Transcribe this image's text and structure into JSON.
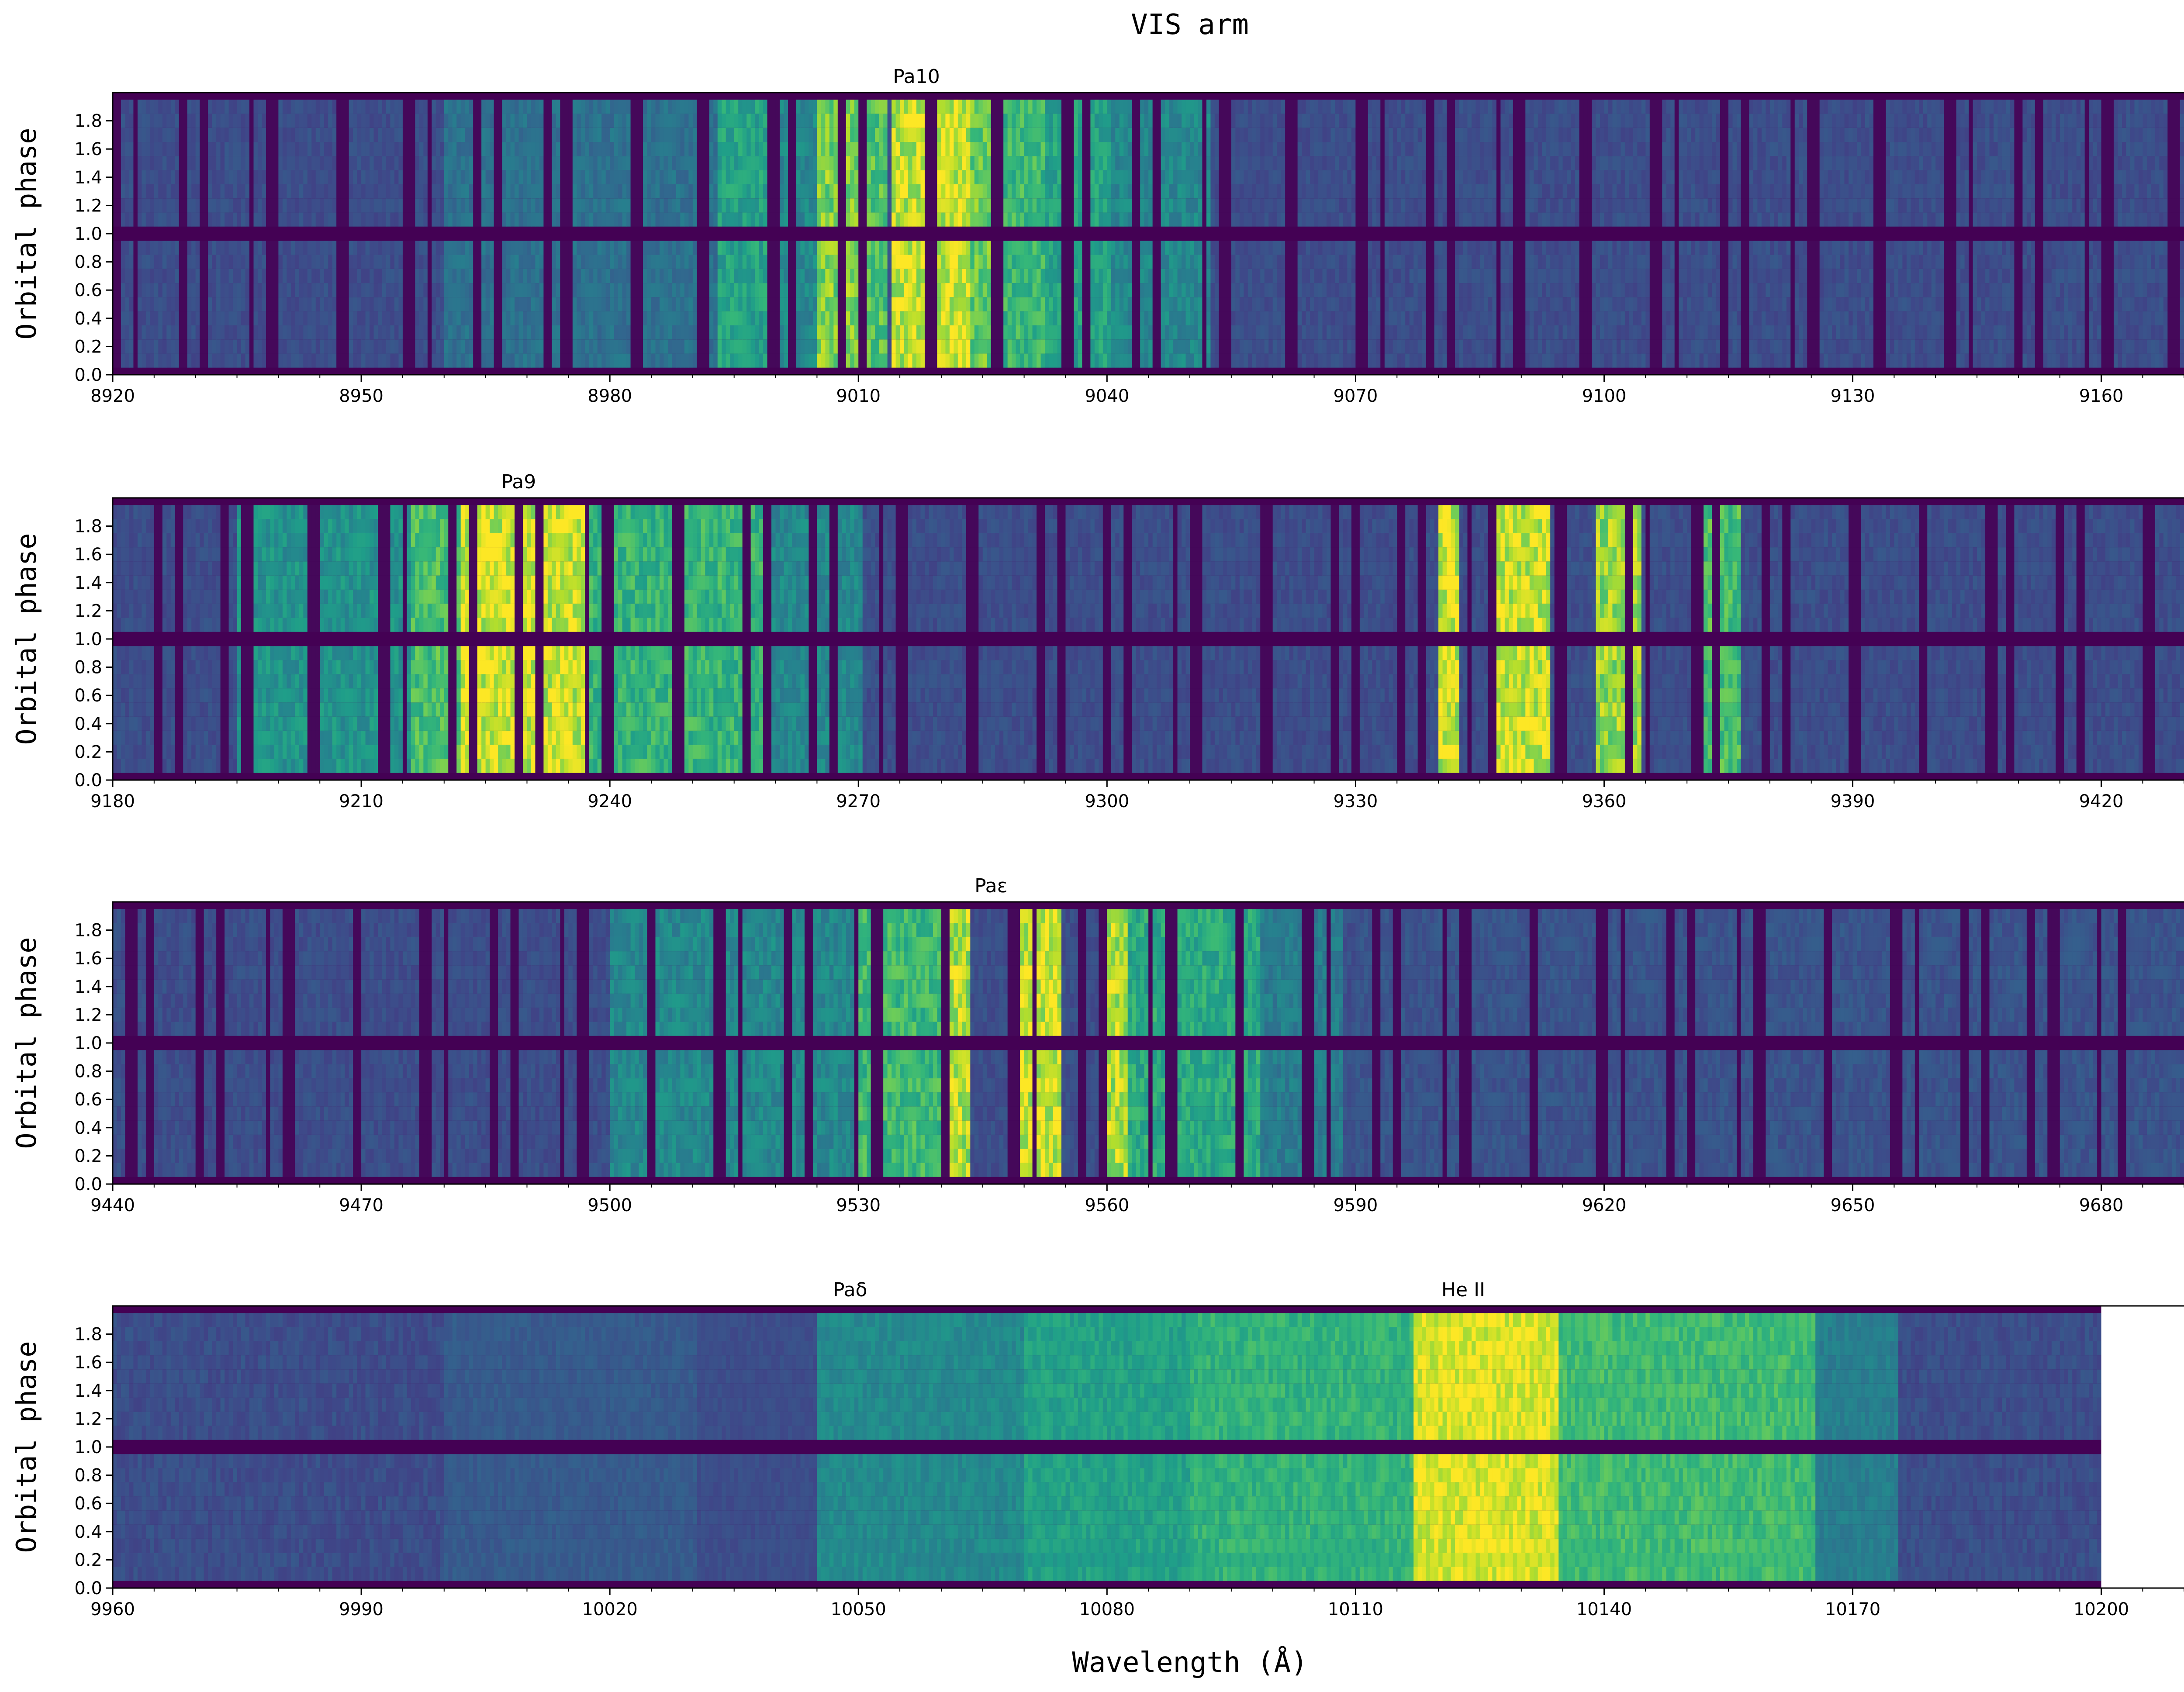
{
  "chart_data": {
    "type": "heatmap",
    "title": "VIS arm",
    "xlabel": "Wavelength (Å)",
    "ylabel": "Orbital phase",
    "colormap": "viridis",
    "colors": {
      "low": "#440154",
      "mid": "#21918c",
      "high": "#fde725",
      "frame": "#3b3b3b",
      "background": "#ffffff"
    },
    "panels": [
      {
        "xlim": [
          8920,
          9180
        ],
        "ylim": [
          0.0,
          2.0
        ],
        "xticks": [
          "8920",
          "8950",
          "8980",
          "9010",
          "9040",
          "9070",
          "9100",
          "9130",
          "9160"
        ],
        "yticks": [
          "0.0",
          "0.2",
          "0.4",
          "0.6",
          "0.8",
          "1.0",
          "1.2",
          "1.4",
          "1.6",
          "1.8"
        ],
        "data_xmax": 9180,
        "gaps": [
          [
            0.95,
            1.05
          ]
        ],
        "line_labels": [
          {
            "text": "Pa10",
            "x": 9017
          }
        ],
        "features": [
          {
            "x0": 8993,
            "x1": 9000,
            "intensity": 0.62
          },
          {
            "x0": 9000,
            "x1": 9005,
            "intensity": 0.5
          },
          {
            "x0": 9005,
            "x1": 9010,
            "intensity": 0.86
          },
          {
            "x0": 9010,
            "x1": 9013,
            "intensity": 0.78
          },
          {
            "x0": 9014,
            "x1": 9018,
            "intensity": 0.98
          },
          {
            "x0": 9018,
            "x1": 9023,
            "intensity": 1.0
          },
          {
            "x0": 9023,
            "x1": 9027,
            "intensity": 0.82
          },
          {
            "x0": 9027,
            "x1": 9032,
            "intensity": 0.72
          },
          {
            "x0": 9032,
            "x1": 9040,
            "intensity": 0.62
          },
          {
            "x0": 9040,
            "x1": 9052,
            "intensity": 0.5
          },
          {
            "x0": 8960,
            "x1": 8993,
            "intensity": 0.4
          }
        ]
      },
      {
        "xlim": [
          9180,
          9440
        ],
        "ylim": [
          0.0,
          2.0
        ],
        "xticks": [
          "9180",
          "9210",
          "9240",
          "9270",
          "9300",
          "9330",
          "9360",
          "9390",
          "9420"
        ],
        "yticks": [
          "0.0",
          "0.2",
          "0.4",
          "0.6",
          "0.8",
          "1.0",
          "1.2",
          "1.4",
          "1.6",
          "1.8"
        ],
        "data_xmax": 9440,
        "gaps": [
          [
            0.95,
            1.05
          ]
        ],
        "line_labels": [
          {
            "text": "Pa9",
            "x": 9229
          }
        ],
        "features": [
          {
            "x0": 9195,
            "x1": 9216,
            "intensity": 0.55
          },
          {
            "x0": 9216,
            "x1": 9222,
            "intensity": 0.75
          },
          {
            "x0": 9222,
            "x1": 9237,
            "intensity": 1.0
          },
          {
            "x0": 9237,
            "x1": 9258,
            "intensity": 0.7
          },
          {
            "x0": 9258,
            "x1": 9270,
            "intensity": 0.5
          },
          {
            "x0": 9340,
            "x1": 9342,
            "intensity": 1.0
          },
          {
            "x0": 9346,
            "x1": 9353,
            "intensity": 1.0
          },
          {
            "x0": 9359,
            "x1": 9364,
            "intensity": 0.9
          },
          {
            "x0": 9372,
            "x1": 9376,
            "intensity": 0.75
          }
        ]
      },
      {
        "xlim": [
          9440,
          9700
        ],
        "ylim": [
          0.0,
          2.0
        ],
        "xticks": [
          "9440",
          "9470",
          "9500",
          "9530",
          "9560",
          "9590",
          "9620",
          "9650",
          "9680"
        ],
        "yticks": [
          "0.0",
          "0.2",
          "0.4",
          "0.6",
          "0.8",
          "1.0",
          "1.2",
          "1.4",
          "1.6",
          "1.8"
        ],
        "data_xmax": 9700,
        "gaps": [
          [
            0.95,
            1.05
          ]
        ],
        "line_labels": [
          {
            "text": "Paε",
            "x": 9546
          }
        ],
        "features": [
          {
            "x0": 9500,
            "x1": 9530,
            "intensity": 0.5
          },
          {
            "x0": 9530,
            "x1": 9540,
            "intensity": 0.72
          },
          {
            "x0": 9540,
            "x1": 9543,
            "intensity": 0.95
          },
          {
            "x0": 9548,
            "x1": 9554,
            "intensity": 1.0
          },
          {
            "x0": 9559,
            "x1": 9562,
            "intensity": 0.95
          },
          {
            "x0": 9562,
            "x1": 9578,
            "intensity": 0.65
          },
          {
            "x0": 9578,
            "x1": 9588,
            "intensity": 0.45
          },
          {
            "x0": 9590,
            "x1": 9700,
            "intensity": 0.28
          }
        ]
      },
      {
        "xlim": [
          9960,
          10220
        ],
        "ylim": [
          0.0,
          2.0
        ],
        "xticks": [
          "9960",
          "9990",
          "10020",
          "10050",
          "10080",
          "10110",
          "10140",
          "10170",
          "10200"
        ],
        "yticks": [
          "0.0",
          "0.2",
          "0.4",
          "0.6",
          "0.8",
          "1.0",
          "1.2",
          "1.4",
          "1.6",
          "1.8"
        ],
        "data_xmax": 10200,
        "gaps": [
          [
            0.95,
            1.05
          ]
        ],
        "line_labels": [
          {
            "text": "Paδ",
            "x": 10049
          },
          {
            "text": "He II",
            "x": 10123
          }
        ],
        "features": [
          {
            "x0": 9985,
            "x1": 10000,
            "intensity": 0.2
          },
          {
            "x0": 10000,
            "x1": 10030,
            "intensity": 0.3
          },
          {
            "x0": 10030,
            "x1": 10045,
            "intensity": 0.25
          },
          {
            "x0": 10045,
            "x1": 10070,
            "intensity": 0.5
          },
          {
            "x0": 10070,
            "x1": 10090,
            "intensity": 0.6
          },
          {
            "x0": 10090,
            "x1": 10117,
            "intensity": 0.68
          },
          {
            "x0": 10117,
            "x1": 10134,
            "intensity": 1.0
          },
          {
            "x0": 10134,
            "x1": 10165,
            "intensity": 0.72
          },
          {
            "x0": 10165,
            "x1": 10175,
            "intensity": 0.45
          }
        ]
      }
    ]
  }
}
